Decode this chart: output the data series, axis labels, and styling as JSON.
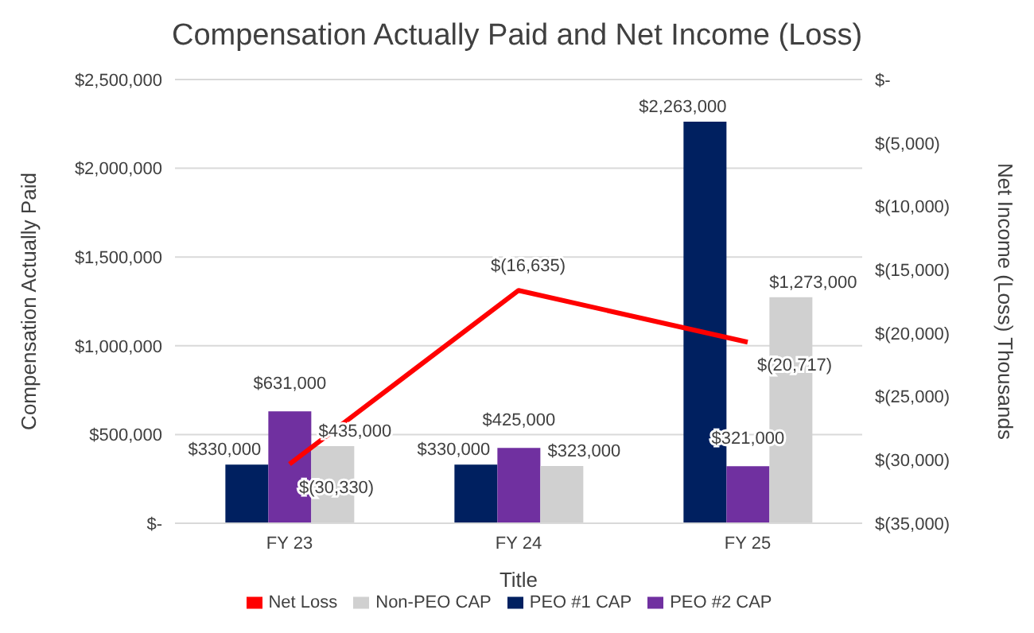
{
  "chart_data": {
    "type": "bar",
    "title": "Compensation Actually Paid and Net Income (Loss)",
    "xlabel": "Title",
    "ylabel": "Compensation Actually Paid",
    "y2label": "Net Income (Loss) Thousands",
    "categories": [
      "FY 23",
      "FY 24",
      "FY 25"
    ],
    "series": [
      {
        "name": "PEO #1 CAP",
        "color": "#002060",
        "values": [
          330000,
          330000,
          2263000
        ],
        "value_labels": [
          "$330,000",
          "$330,000",
          "$2,263,000"
        ]
      },
      {
        "name": "PEO #2 CAP",
        "color": "#7030a0",
        "values": [
          631000,
          425000,
          321000
        ],
        "value_labels": [
          "$631,000",
          "$425,000",
          "$321,000"
        ]
      },
      {
        "name": "Non-PEO CAP",
        "color": "#d0d0d0",
        "values": [
          435000,
          323000,
          1273000
        ],
        "value_labels": [
          "$435,000",
          "$323,000",
          "$1,273,000"
        ]
      },
      {
        "name": "Net Loss",
        "type": "line",
        "axis": "y2",
        "color": "#ff0000",
        "values": [
          -30330,
          -16635,
          -20717
        ],
        "value_labels": [
          "$(30,330)",
          "$(16,635)",
          "$(20,717)"
        ]
      }
    ],
    "ylim": [
      0,
      2500000
    ],
    "yticks": [
      {
        "value": 0,
        "label": "$-"
      },
      {
        "value": 500000,
        "label": "$500,000"
      },
      {
        "value": 1000000,
        "label": "$1,000,000"
      },
      {
        "value": 1500000,
        "label": "$1,500,000"
      },
      {
        "value": 2000000,
        "label": "$2,000,000"
      },
      {
        "value": 2500000,
        "label": "$2,500,000"
      }
    ],
    "y2lim": [
      -35000,
      0
    ],
    "y2ticks": [
      {
        "value": 0,
        "label": "$-"
      },
      {
        "value": -5000,
        "label": "$(5,000)"
      },
      {
        "value": -10000,
        "label": "$(10,000)"
      },
      {
        "value": -15000,
        "label": "$(15,000)"
      },
      {
        "value": -20000,
        "label": "$(20,000)"
      },
      {
        "value": -25000,
        "label": "$(25,000)"
      },
      {
        "value": -30000,
        "label": "$(30,000)"
      },
      {
        "value": -35000,
        "label": "$(35,000)"
      }
    ],
    "grid": "y",
    "legend": "bottom",
    "marker": "none"
  }
}
